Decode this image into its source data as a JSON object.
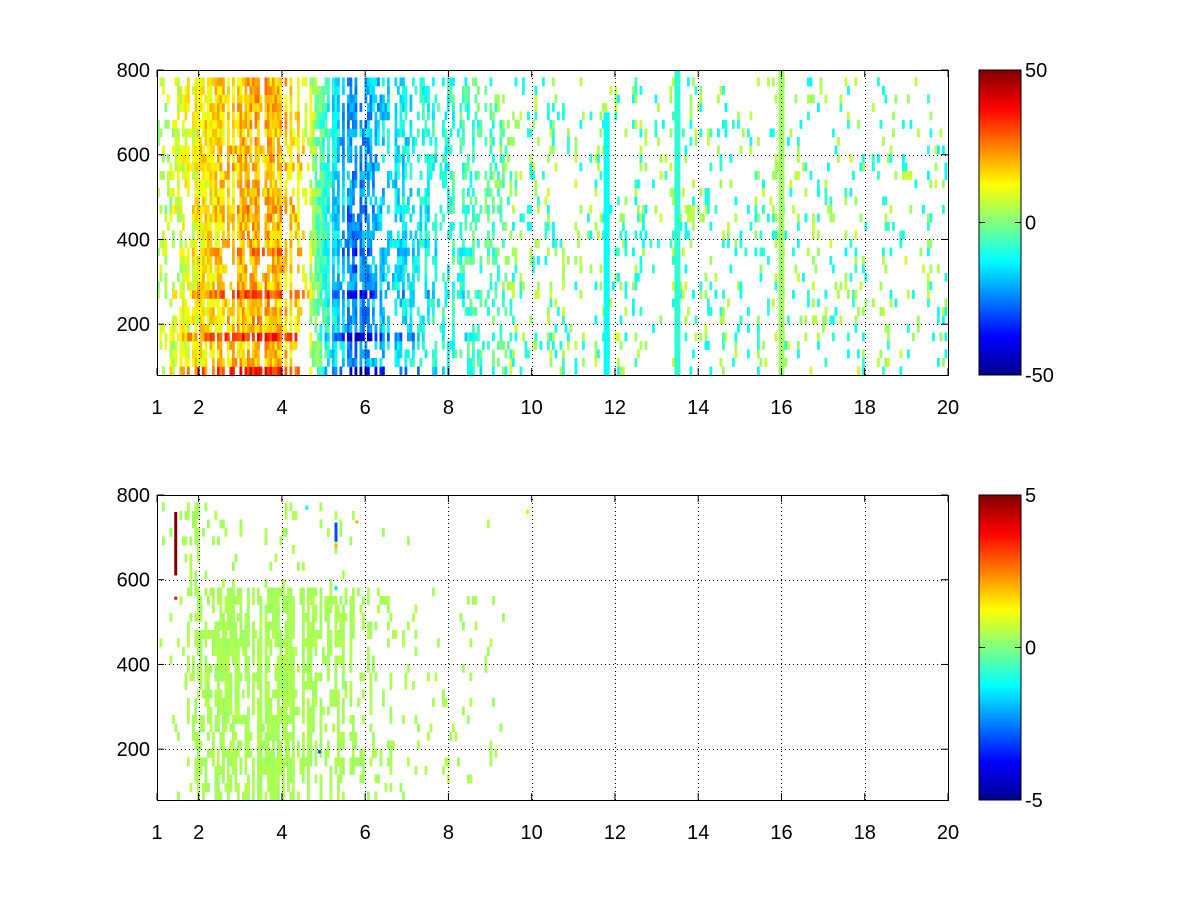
{
  "chart_data": [
    {
      "type": "heatmap",
      "title": "",
      "xlabel": "",
      "ylabel": "",
      "xlim": [
        1,
        20
      ],
      "ylim": [
        80,
        800
      ],
      "xticks": [
        1,
        2,
        4,
        6,
        8,
        10,
        12,
        14,
        16,
        18,
        20
      ],
      "xtick_labels": [
        "1",
        "2",
        "4",
        "6",
        "8",
        "10",
        "12",
        "14",
        "16",
        "18",
        "20"
      ],
      "yticks": [
        200,
        400,
        600,
        800
      ],
      "ytick_labels": [
        "200",
        "400",
        "600",
        "800"
      ],
      "grid": true,
      "colormap": "jet",
      "clim": [
        -50,
        50
      ],
      "colorbar_ticks": [
        -50,
        0,
        50
      ],
      "colorbar_labels": [
        "-50",
        "0",
        "50"
      ],
      "density_x": [
        [
          1.0,
          0.35
        ],
        [
          1.5,
          0.55
        ],
        [
          2.0,
          0.95
        ],
        [
          3.0,
          1.0
        ],
        [
          4.0,
          0.95
        ],
        [
          5.0,
          0.85
        ],
        [
          6.0,
          0.75
        ],
        [
          7.0,
          0.6
        ],
        [
          8.0,
          0.5
        ],
        [
          9.0,
          0.4
        ],
        [
          10.0,
          0.3
        ],
        [
          12.0,
          0.22
        ],
        [
          14.0,
          0.22
        ],
        [
          16.0,
          0.2
        ],
        [
          18.0,
          0.18
        ],
        [
          20.0,
          0.17
        ]
      ],
      "bands_y": [
        {
          "y": 85,
          "value": 40
        },
        {
          "y": 180,
          "value": 38
        },
        {
          "y": 275,
          "value": 32
        },
        {
          "y": 370,
          "value": 24
        },
        {
          "y": 470,
          "value": 18
        },
        {
          "y": 570,
          "value": 12
        },
        {
          "y": 665,
          "value": 8
        }
      ],
      "value_trend_x": [
        [
          1.0,
          4
        ],
        [
          2.0,
          18
        ],
        [
          3.5,
          28
        ],
        [
          4.5,
          20
        ],
        [
          5.0,
          -10
        ],
        [
          5.8,
          -35
        ],
        [
          6.5,
          -20
        ],
        [
          7.5,
          -15
        ],
        [
          8.5,
          -8
        ],
        [
          10.0,
          0
        ],
        [
          14.0,
          2
        ],
        [
          20.0,
          1
        ]
      ],
      "streak_columns": [
        {
          "x": 11.8,
          "y0": 80,
          "y1": 700,
          "value": -12
        },
        {
          "x": 13.5,
          "y0": 80,
          "y1": 800,
          "value": -8
        },
        {
          "x": 16.0,
          "y0": 80,
          "y1": 800,
          "value": 3
        }
      ]
    },
    {
      "type": "heatmap",
      "title": "",
      "xlabel": "",
      "ylabel": "",
      "xlim": [
        1,
        20
      ],
      "ylim": [
        80,
        800
      ],
      "xticks": [
        1,
        2,
        4,
        6,
        8,
        10,
        12,
        14,
        16,
        18,
        20
      ],
      "xtick_labels": [
        "1",
        "2",
        "4",
        "6",
        "8",
        "10",
        "12",
        "14",
        "16",
        "18",
        "20"
      ],
      "yticks": [
        200,
        400,
        600,
        800
      ],
      "ytick_labels": [
        "200",
        "400",
        "600",
        "800"
      ],
      "grid": true,
      "colormap": "jet",
      "clim": [
        -5,
        5
      ],
      "colorbar_ticks": [
        -5,
        0,
        5
      ],
      "colorbar_labels": [
        "-5",
        "0",
        "5"
      ],
      "dominant_value": 0.4,
      "density_x": [
        [
          1.0,
          0.0
        ],
        [
          1.6,
          0.15
        ],
        [
          2.0,
          0.6
        ],
        [
          3.0,
          0.75
        ],
        [
          4.0,
          0.8
        ],
        [
          5.0,
          0.7
        ],
        [
          5.9,
          0.65
        ],
        [
          6.0,
          0.25
        ],
        [
          6.8,
          0.2
        ],
        [
          7.5,
          0.1
        ],
        [
          8.3,
          0.12
        ],
        [
          9.3,
          0.05
        ],
        [
          9.4,
          0.0
        ],
        [
          20.0,
          0.0
        ]
      ],
      "bands_y": [
        {
          "y": 85,
          "value": 0.4
        },
        {
          "y": 180,
          "value": 0.4
        },
        {
          "y": 275,
          "value": 0.4
        },
        {
          "y": 370,
          "value": 0.4
        },
        {
          "y": 470,
          "value": 0.4
        },
        {
          "y": 570,
          "value": 0.4
        },
        {
          "y": 665,
          "value": 0.4
        }
      ],
      "outliers": [
        {
          "x": 1.45,
          "y0": 610,
          "y1": 760,
          "value": 5
        },
        {
          "x": 1.45,
          "y0": 555,
          "y1": 560,
          "value": 4
        },
        {
          "x": 5.3,
          "y0": 690,
          "y1": 735,
          "value": -3
        },
        {
          "x": 5.3,
          "y0": 675,
          "y1": 685,
          "value": 2
        },
        {
          "x": 5.8,
          "y0": 735,
          "y1": 740,
          "value": 2
        },
        {
          "x": 9.9,
          "y0": 755,
          "y1": 765,
          "value": 1.5
        },
        {
          "x": 4.6,
          "y0": 765,
          "y1": 775,
          "value": -1
        },
        {
          "x": 4.9,
          "y0": 190,
          "y1": 198,
          "value": -3
        },
        {
          "x": 5.3,
          "y0": 575,
          "y1": 585,
          "value": -1.5
        }
      ]
    }
  ]
}
